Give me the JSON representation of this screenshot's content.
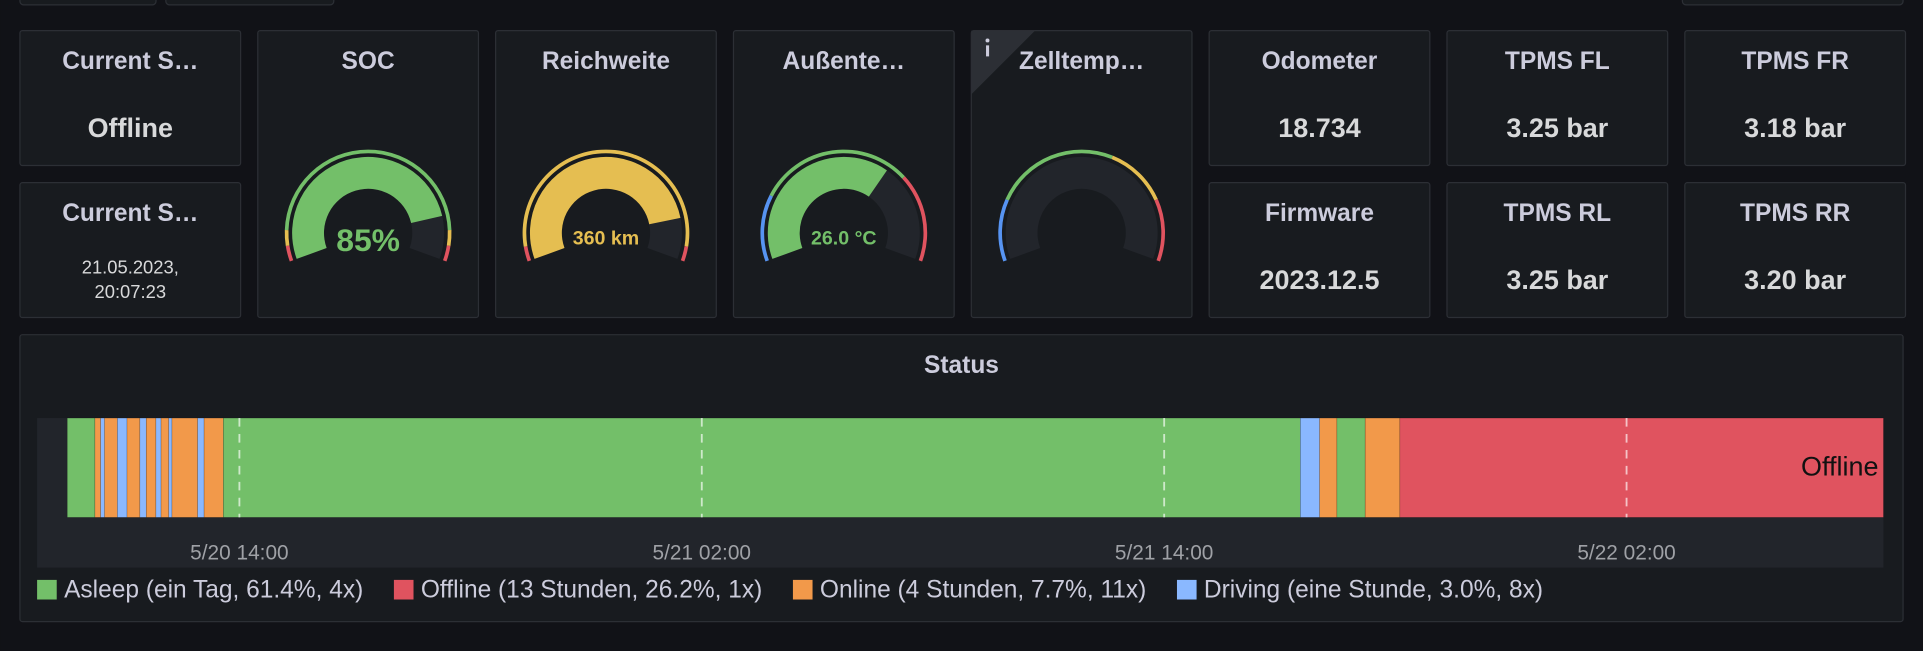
{
  "panels": [
    {
      "title": "Current S…",
      "value": "Offline"
    },
    {
      "title": "Current S…",
      "value_lines": [
        "21.05.2023,",
        "20:07:23"
      ]
    },
    {
      "title": "Odometer",
      "value": "18.734"
    },
    {
      "title": "Firmware",
      "value": "2023.12.5"
    },
    {
      "title": "TPMS FL",
      "value": "3.25 bar"
    },
    {
      "title": "TPMS RL",
      "value": "3.25 bar"
    },
    {
      "title": "TPMS FR",
      "value": "3.18 bar"
    },
    {
      "title": "TPMS RR",
      "value": "3.20 bar"
    }
  ],
  "gauges": [
    {
      "title": "SOC",
      "value": 85,
      "label": "85%",
      "min": 0,
      "max": 100,
      "color": "#73BF69",
      "bands": [
        {
          "from": 0,
          "to": 5,
          "color": "#E0535F"
        },
        {
          "from": 5,
          "to": 10,
          "color": "#E5BE51"
        },
        {
          "from": 10,
          "to": 90,
          "color": "#73BF69"
        },
        {
          "from": 90,
          "to": 95,
          "color": "#E5BE51"
        },
        {
          "from": 95,
          "to": 100,
          "color": "#E0535F"
        }
      ]
    },
    {
      "title": "Reichweite",
      "value": 360,
      "label": "360 km",
      "min": 0,
      "max": 420,
      "color": "#E5BE51",
      "bands": [
        {
          "from": 0,
          "to": 20,
          "color": "#E0535F"
        },
        {
          "from": 20,
          "to": 400,
          "color": "#E5BE51"
        },
        {
          "from": 400,
          "to": 420,
          "color": "#E0535F"
        }
      ]
    },
    {
      "title": "Außente…",
      "value": 26,
      "label": "26.0 °C",
      "min": -20,
      "max": 50,
      "color": "#73BF69",
      "bands": [
        {
          "from": -20,
          "to": -5,
          "color": "#5794F2"
        },
        {
          "from": -5,
          "to": 30,
          "color": "#73BF69"
        },
        {
          "from": 30,
          "to": 50,
          "color": "#E0535F"
        }
      ]
    },
    {
      "title": "Zelltemp…",
      "value": null,
      "min": 0,
      "max": 50,
      "color": "#73BF69",
      "bands": [
        {
          "from": 0,
          "to": 10,
          "color": "#5794F2"
        },
        {
          "from": 10,
          "to": 30,
          "color": "#73BF69"
        },
        {
          "from": 30,
          "to": 40,
          "color": "#E5BE51"
        },
        {
          "from": 40,
          "to": 50,
          "color": "#E0535F"
        }
      ]
    }
  ],
  "status": {
    "title": "Status",
    "xlim": [
      "2023-05-20T08:45",
      "2023-05-22T08:40"
    ],
    "xticks": [
      {
        "value": "2023-05-20T14:00",
        "label": "5/20 14:00"
      },
      {
        "value": "2023-05-21T02:00",
        "label": "5/21 02:00"
      },
      {
        "value": "2023-05-21T14:00",
        "label": "5/21 14:00"
      },
      {
        "value": "2023-05-22T02:00",
        "label": "5/22 02:00"
      }
    ],
    "legend": [
      {
        "label": "Asleep (ein Tag, 61.4%, 4x)",
        "color": "#73BF69"
      },
      {
        "label": "Offline (13 Stunden, 26.2%, 1x)",
        "color": "#E0535F"
      },
      {
        "label": "Online (4 Stunden, 7.7%, 11x)",
        "color": "#F2994A"
      },
      {
        "label": "Driving (eine Stunde, 3.0%, 8x)",
        "color": "#8AB8FF"
      }
    ],
    "segments": [
      {
        "start": "2023-05-20T09:32",
        "end": "2023-05-20T10:15",
        "color": "#73BF69"
      },
      {
        "start": "2023-05-20T10:15",
        "end": "2023-05-20T10:24",
        "color": "#F2994A"
      },
      {
        "start": "2023-05-20T10:24",
        "end": "2023-05-20T10:30",
        "color": "#8AB8FF"
      },
      {
        "start": "2023-05-20T10:30",
        "end": "2023-05-20T10:50",
        "color": "#F2994A"
      },
      {
        "start": "2023-05-20T10:50",
        "end": "2023-05-20T11:05",
        "color": "#8AB8FF"
      },
      {
        "start": "2023-05-20T11:05",
        "end": "2023-05-20T11:25",
        "color": "#F2994A"
      },
      {
        "start": "2023-05-20T11:25",
        "end": "2023-05-20T11:35",
        "color": "#8AB8FF"
      },
      {
        "start": "2023-05-20T11:35",
        "end": "2023-05-20T11:50",
        "color": "#F2994A"
      },
      {
        "start": "2023-05-20T11:50",
        "end": "2023-05-20T11:58",
        "color": "#8AB8FF"
      },
      {
        "start": "2023-05-20T11:58",
        "end": "2023-05-20T12:10",
        "color": "#F2994A"
      },
      {
        "start": "2023-05-20T12:10",
        "end": "2023-05-20T12:15",
        "color": "#8AB8FF"
      },
      {
        "start": "2023-05-20T12:15",
        "end": "2023-05-20T12:55",
        "color": "#F2994A"
      },
      {
        "start": "2023-05-20T12:55",
        "end": "2023-05-20T13:05",
        "color": "#8AB8FF"
      },
      {
        "start": "2023-05-20T13:05",
        "end": "2023-05-20T13:35",
        "color": "#F2994A"
      },
      {
        "start": "2023-05-20T13:35",
        "end": "2023-05-21T17:32",
        "color": "#73BF69"
      },
      {
        "start": "2023-05-21T17:32",
        "end": "2023-05-21T18:02",
        "color": "#8AB8FF"
      },
      {
        "start": "2023-05-21T18:02",
        "end": "2023-05-21T18:29",
        "color": "#F2994A"
      },
      {
        "start": "2023-05-21T18:29",
        "end": "2023-05-21T19:13",
        "color": "#73BF69"
      },
      {
        "start": "2023-05-21T19:13",
        "end": "2023-05-21T20:07",
        "color": "#F2994A"
      },
      {
        "start": "2023-05-21T20:07",
        "end": "2023-05-22T08:40",
        "color": "#E0535F",
        "label": "Offline"
      }
    ]
  }
}
